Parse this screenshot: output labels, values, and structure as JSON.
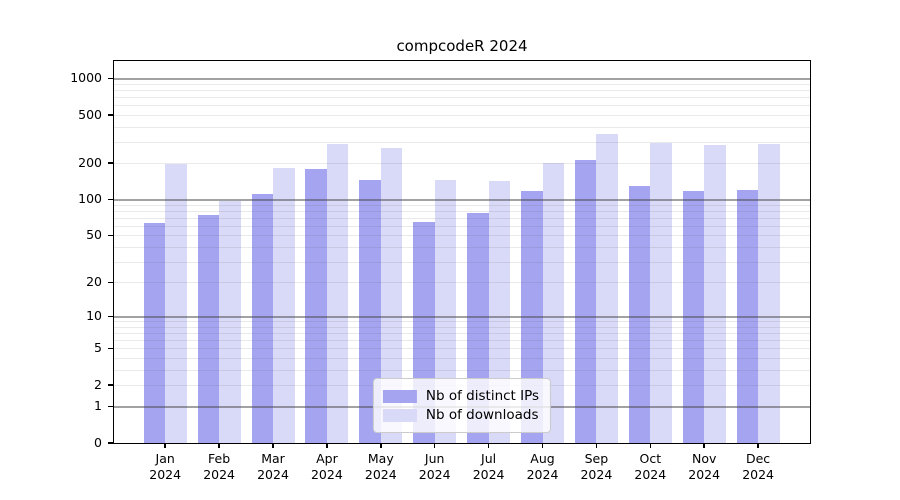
{
  "title": "compcodeR 2024",
  "legend": {
    "position": "lower center",
    "items": [
      {
        "label": "Nb of distinct IPs",
        "color": "#a4a4f0"
      },
      {
        "label": "Nb of downloads",
        "color": "#d9d9f8"
      }
    ]
  },
  "chart_data": {
    "type": "bar",
    "title": "compcodeR 2024",
    "categories": [
      "Jan",
      "Feb",
      "Mar",
      "Apr",
      "May",
      "Jun",
      "Jul",
      "Aug",
      "Sep",
      "Oct",
      "Nov",
      "Dec"
    ],
    "year": "2024",
    "series": [
      {
        "name": "Nb of distinct IPs",
        "color": "#a4a4f0",
        "values": [
          63,
          74,
          110,
          179,
          144,
          65,
          77,
          117,
          211,
          128,
          118,
          120
        ]
      },
      {
        "name": "Nb of downloads",
        "color": "#d9d9f8",
        "values": [
          198,
          97,
          181,
          287,
          268,
          145,
          142,
          200,
          347,
          293,
          280,
          289
        ]
      }
    ],
    "xlabel": "",
    "ylabel": "",
    "y_scale": "log10(value+1)",
    "y_ticks": [
      0,
      1,
      2,
      5,
      10,
      20,
      50,
      100,
      200,
      500,
      1000
    ],
    "y_gridlines_major": [
      1,
      10,
      100,
      1000
    ],
    "y_gridlines_minor": [
      2,
      3,
      4,
      5,
      6,
      7,
      8,
      9,
      20,
      30,
      40,
      50,
      60,
      70,
      80,
      90,
      200,
      300,
      400,
      500,
      600,
      700,
      800,
      900
    ],
    "ylim": [
      0,
      1390
    ],
    "grid": "horizontal",
    "legend_position": "lower center"
  }
}
